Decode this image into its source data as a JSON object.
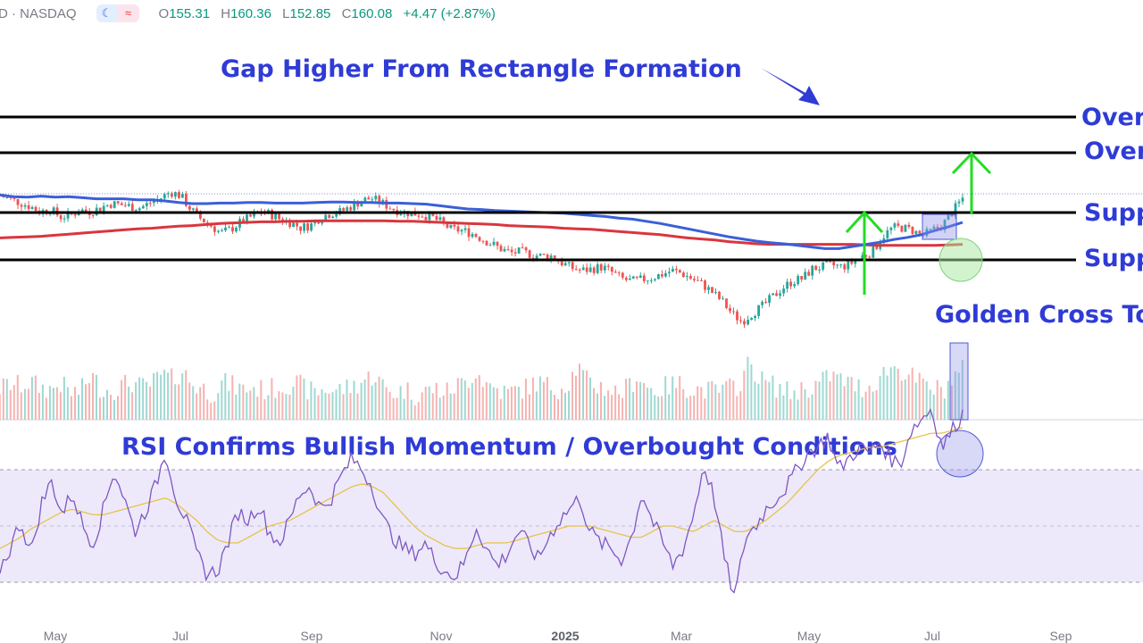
{
  "header": {
    "symbol": "D · NASDAQ",
    "o_label": "O",
    "o": "155.31",
    "h_label": "H",
    "h": "160.36",
    "l_label": "L",
    "l": "152.85",
    "c_label": "C",
    "c": "160.08",
    "change": "+4.47 (+2.87%)"
  },
  "annotations": {
    "gap": "Gap Higher From Rectangle Formation",
    "level1": "Over",
    "level2": "Over",
    "level3": "Supp",
    "level4": "Supp",
    "golden_cross": "Golden Cross To",
    "rsi": "RSI Confirms Bullish Momentum / Overbought Conditions"
  },
  "colors": {
    "up": "#26a69a",
    "down": "#ef5350",
    "ma50": "#3a5fd9",
    "ma200": "#d9363e",
    "annotation": "#2f3bd6",
    "arrow": "#22dd22",
    "rsi_line": "#7e57c2",
    "rsi_ma": "#e6c34a"
  },
  "chart_data": {
    "type": "line",
    "x_ticks": [
      "May",
      "Jul",
      "Sep",
      "Nov",
      "2025",
      "Mar",
      "May",
      "Jul",
      "Sep"
    ],
    "x_ticks_bold": [
      "2025"
    ],
    "series": [
      {
        "values": [
          0.36,
          0.33,
          0.32,
          0.34,
          0.32,
          0.33,
          0.31,
          0.29,
          0.29,
          0.29,
          0.27,
          0.27,
          0.25,
          0.22,
          0.2,
          0.2,
          0.21,
          0.21,
          0.22,
          0.22,
          0.21,
          0.21,
          0.21,
          0.22,
          0.23,
          0.23,
          0.22,
          0.22,
          0.21,
          0.21,
          0.2,
          0.19,
          0.16,
          0.13,
          0.1,
          0.09,
          0.07,
          0.06,
          0.05,
          0.04,
          0.03,
          0.02,
          0.0,
          -0.02,
          -0.04,
          -0.07,
          -0.09,
          -0.13,
          -0.17,
          -0.22,
          -0.27,
          -0.32,
          -0.37,
          -0.42,
          -0.46,
          -0.5,
          -0.53,
          -0.55,
          -0.58,
          -0.61,
          -0.64,
          -0.64,
          -0.6,
          -0.56,
          -0.52,
          -0.47,
          -0.43,
          -0.38,
          -0.3,
          -0.23,
          -0.15
        ]
      },
      {
        "values": [
          -0.44,
          -0.43,
          -0.42,
          -0.41,
          -0.39,
          -0.37,
          -0.35,
          -0.33,
          -0.31,
          -0.29,
          -0.27,
          -0.26,
          -0.24,
          -0.22,
          -0.21,
          -0.19,
          -0.17,
          -0.16,
          -0.15,
          -0.14,
          -0.14,
          -0.13,
          -0.13,
          -0.12,
          -0.12,
          -0.12,
          -0.12,
          -0.12,
          -0.12,
          -0.13,
          -0.13,
          -0.14,
          -0.15,
          -0.16,
          -0.17,
          -0.18,
          -0.19,
          -0.21,
          -0.22,
          -0.23,
          -0.24,
          -0.26,
          -0.27,
          -0.28,
          -0.3,
          -0.32,
          -0.34,
          -0.36,
          -0.38,
          -0.41,
          -0.44,
          -0.46,
          -0.48,
          -0.51,
          -0.53,
          -0.55,
          -0.56,
          -0.56,
          -0.56,
          -0.56,
          -0.56,
          -0.56,
          -0.56,
          -0.57,
          -0.58,
          -0.58,
          -0.58,
          -0.58,
          -0.58,
          -0.57,
          -0.56
        ]
      }
    ],
    "price_path": [
      0.35,
      0.28,
      0.22,
      0.15,
      0.05,
      0.1,
      -0.05,
      -0.02,
      0.08,
      0.05,
      0.12,
      0.2,
      0.18,
      0.15,
      0.12,
      0.22,
      0.3,
      0.42,
      0.35,
      0.1,
      -0.08,
      -0.2,
      -0.35,
      -0.28,
      -0.15,
      -0.05,
      0.05,
      0.0,
      -0.1,
      -0.15,
      -0.25,
      -0.2,
      -0.05,
      0.02,
      0.05,
      0.15,
      0.25,
      0.3,
      0.22,
      0.12,
      0.05,
      0.02,
      0.0,
      -0.05,
      -0.15,
      -0.28,
      -0.3,
      -0.35,
      -0.45,
      -0.55,
      -0.65,
      -0.72,
      -0.7,
      -0.75,
      -0.78,
      -0.78,
      -0.9,
      -1.0,
      -1.05,
      -1.02,
      -0.98,
      -1.08,
      -1.2,
      -1.25,
      -1.22,
      -1.18,
      -1.12,
      -1.05,
      -1.1,
      -1.2,
      -1.3,
      -1.45,
      -1.62,
      -1.85,
      -2.0,
      -1.85,
      -1.72,
      -1.55,
      -1.38,
      -1.25,
      -1.2,
      -1.02,
      -0.98,
      -0.95,
      -0.98,
      -0.9,
      -0.78,
      -0.7,
      -0.42,
      -0.25,
      -0.25,
      -0.3,
      -0.4,
      -0.3,
      -0.2,
      0.05,
      0.3
    ],
    "volume_path": [
      0.35,
      0.4,
      0.38,
      0.42,
      0.36,
      0.34,
      0.4,
      0.3,
      0.32,
      0.5,
      0.35,
      0.33,
      0.38,
      0.42,
      0.36,
      0.4,
      0.5,
      0.45,
      0.55,
      0.4,
      0.35,
      0.3,
      0.42,
      0.38,
      0.34,
      0.36,
      0.33,
      0.35,
      0.38,
      0.42,
      0.36,
      0.3,
      0.34,
      0.33,
      0.35,
      0.38,
      0.45,
      0.5,
      0.35,
      0.3,
      0.34,
      0.28,
      0.32,
      0.35,
      0.3,
      0.38,
      0.42,
      0.55,
      0.4,
      0.35,
      0.3,
      0.33,
      0.36,
      0.42,
      0.38,
      0.35,
      0.4,
      0.6,
      0.42,
      0.38,
      0.35,
      0.3,
      0.36,
      0.5,
      0.35,
      0.33,
      0.38,
      0.4,
      0.36,
      0.34,
      0.33,
      0.32,
      0.35,
      0.4,
      0.65,
      0.45,
      0.4,
      0.35,
      0.3,
      0.34,
      0.36,
      0.42,
      0.5,
      0.45,
      0.4,
      0.36,
      0.38,
      0.5,
      0.6,
      0.55,
      0.48,
      0.4,
      0.35,
      0.33,
      0.45,
      0.55
    ],
    "rsi_path": [
      35,
      42,
      52,
      40,
      58,
      66,
      54,
      62,
      50,
      44,
      56,
      70,
      60,
      48,
      55,
      64,
      77,
      60,
      52,
      40,
      33,
      34,
      44,
      55,
      52,
      58,
      48,
      44,
      52,
      62,
      64,
      56,
      60,
      68,
      74,
      70,
      64,
      52,
      46,
      42,
      40,
      44,
      38,
      34,
      32,
      38,
      50,
      42,
      36,
      40,
      48,
      44,
      38,
      46,
      52,
      56,
      60,
      48,
      44,
      42,
      38,
      46,
      62,
      52,
      44,
      36,
      42,
      54,
      72,
      60,
      38,
      24,
      46,
      50,
      56,
      60,
      64,
      70,
      76,
      78,
      82,
      70,
      74,
      78,
      76,
      80,
      74,
      72,
      84,
      88,
      92,
      78,
      84,
      90
    ],
    "rsi_ma_path": [
      42,
      44,
      46,
      49,
      51,
      53,
      55,
      56,
      55,
      54,
      54,
      55,
      56,
      57,
      58,
      59,
      60,
      58,
      55,
      52,
      48,
      45,
      44,
      44,
      46,
      48,
      50,
      51,
      52,
      54,
      56,
      58,
      60,
      62,
      64,
      65,
      64,
      62,
      58,
      54,
      50,
      47,
      45,
      43,
      42,
      42,
      43,
      44,
      44,
      44,
      45,
      46,
      47,
      48,
      49,
      50,
      50,
      50,
      49,
      48,
      47,
      46,
      46,
      48,
      50,
      50,
      49,
      48,
      50,
      52,
      50,
      48,
      48,
      50,
      52,
      55,
      58,
      62,
      66,
      70,
      73,
      75,
      76,
      77,
      78,
      78,
      79,
      80,
      81,
      82,
      83,
      83,
      84,
      85
    ]
  }
}
